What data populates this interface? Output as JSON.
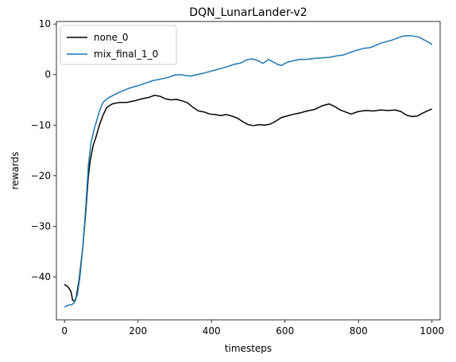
{
  "chart_data": {
    "type": "line",
    "title": "DQN_LunarLander-v2",
    "xlabel": "timesteps",
    "ylabel": "rewards",
    "xlim": [
      -22,
      1022
    ],
    "ylim": [
      -48.5,
      10.5
    ],
    "xticks": [
      0,
      200,
      400,
      600,
      800,
      1000
    ],
    "yticks": [
      10,
      0,
      -10,
      -20,
      -30,
      -40
    ],
    "xtick_labels": [
      "0",
      "200",
      "400",
      "600",
      "800",
      "1000"
    ],
    "ytick_labels": [
      "10",
      "0",
      "−10",
      "−20",
      "−30",
      "−40"
    ],
    "grid": false,
    "legend_position": "top-left",
    "series": [
      {
        "name": "none_0",
        "color": "#000000",
        "points": [
          [
            0,
            -41.5
          ],
          [
            10,
            -42.0
          ],
          [
            18,
            -43.0
          ],
          [
            22,
            -44.6
          ],
          [
            28,
            -44.8
          ],
          [
            32,
            -44.0
          ],
          [
            40,
            -40.5
          ],
          [
            50,
            -34.0
          ],
          [
            58,
            -27.0
          ],
          [
            65,
            -20.0
          ],
          [
            70,
            -17.0
          ],
          [
            78,
            -14.0
          ],
          [
            85,
            -12.5
          ],
          [
            95,
            -10.0
          ],
          [
            105,
            -8.0
          ],
          [
            115,
            -6.5
          ],
          [
            130,
            -5.8
          ],
          [
            150,
            -5.5
          ],
          [
            170,
            -5.5
          ],
          [
            190,
            -5.2
          ],
          [
            210,
            -4.8
          ],
          [
            230,
            -4.5
          ],
          [
            245,
            -4.1
          ],
          [
            260,
            -4.3
          ],
          [
            275,
            -4.8
          ],
          [
            290,
            -5.0
          ],
          [
            305,
            -4.9
          ],
          [
            320,
            -5.2
          ],
          [
            335,
            -5.6
          ],
          [
            350,
            -6.5
          ],
          [
            365,
            -7.2
          ],
          [
            380,
            -7.4
          ],
          [
            395,
            -7.8
          ],
          [
            410,
            -7.9
          ],
          [
            425,
            -8.1
          ],
          [
            440,
            -7.9
          ],
          [
            455,
            -8.2
          ],
          [
            470,
            -8.6
          ],
          [
            485,
            -9.3
          ],
          [
            500,
            -9.9
          ],
          [
            515,
            -10.1
          ],
          [
            530,
            -9.9
          ],
          [
            545,
            -10.0
          ],
          [
            560,
            -9.8
          ],
          [
            575,
            -9.2
          ],
          [
            590,
            -8.5
          ],
          [
            605,
            -8.2
          ],
          [
            620,
            -7.9
          ],
          [
            640,
            -7.6
          ],
          [
            660,
            -7.2
          ],
          [
            680,
            -6.9
          ],
          [
            700,
            -6.2
          ],
          [
            720,
            -5.8
          ],
          [
            735,
            -6.3
          ],
          [
            750,
            -7.0
          ],
          [
            765,
            -7.4
          ],
          [
            780,
            -7.8
          ],
          [
            800,
            -7.3
          ],
          [
            820,
            -7.1
          ],
          [
            840,
            -7.2
          ],
          [
            860,
            -7.0
          ],
          [
            880,
            -7.1
          ],
          [
            900,
            -7.0
          ],
          [
            915,
            -7.3
          ],
          [
            930,
            -8.0
          ],
          [
            945,
            -8.3
          ],
          [
            960,
            -8.2
          ],
          [
            975,
            -7.6
          ],
          [
            990,
            -7.1
          ],
          [
            1000,
            -6.8
          ]
        ]
      },
      {
        "name": "mix_final_1_0",
        "color": "#1f77b4",
        "points": [
          [
            0,
            -46.0
          ],
          [
            10,
            -45.6
          ],
          [
            20,
            -45.5
          ],
          [
            28,
            -45.0
          ],
          [
            35,
            -43.5
          ],
          [
            42,
            -40.0
          ],
          [
            50,
            -34.0
          ],
          [
            58,
            -26.0
          ],
          [
            65,
            -18.0
          ],
          [
            72,
            -13.5
          ],
          [
            80,
            -11.0
          ],
          [
            88,
            -9.0
          ],
          [
            96,
            -7.0
          ],
          [
            105,
            -5.5
          ],
          [
            115,
            -4.8
          ],
          [
            125,
            -4.4
          ],
          [
            135,
            -4.0
          ],
          [
            150,
            -3.5
          ],
          [
            165,
            -3.0
          ],
          [
            180,
            -2.6
          ],
          [
            200,
            -2.2
          ],
          [
            220,
            -1.7
          ],
          [
            240,
            -1.2
          ],
          [
            260,
            -0.9
          ],
          [
            280,
            -0.6
          ],
          [
            300,
            -0.1
          ],
          [
            315,
            0.0
          ],
          [
            330,
            -0.2
          ],
          [
            345,
            -0.3
          ],
          [
            360,
            0.0
          ],
          [
            380,
            0.3
          ],
          [
            400,
            0.7
          ],
          [
            420,
            1.1
          ],
          [
            440,
            1.5
          ],
          [
            460,
            2.0
          ],
          [
            480,
            2.3
          ],
          [
            495,
            2.9
          ],
          [
            510,
            3.1
          ],
          [
            525,
            2.8
          ],
          [
            540,
            2.2
          ],
          [
            555,
            3.0
          ],
          [
            570,
            2.4
          ],
          [
            580,
            2.0
          ],
          [
            590,
            1.8
          ],
          [
            605,
            2.4
          ],
          [
            620,
            2.7
          ],
          [
            640,
            3.0
          ],
          [
            660,
            3.0
          ],
          [
            680,
            3.2
          ],
          [
            700,
            3.3
          ],
          [
            720,
            3.4
          ],
          [
            740,
            3.7
          ],
          [
            760,
            3.9
          ],
          [
            775,
            4.3
          ],
          [
            790,
            4.7
          ],
          [
            800,
            4.9
          ],
          [
            815,
            5.2
          ],
          [
            830,
            5.3
          ],
          [
            845,
            5.7
          ],
          [
            860,
            6.2
          ],
          [
            875,
            6.5
          ],
          [
            890,
            6.8
          ],
          [
            905,
            7.2
          ],
          [
            920,
            7.6
          ],
          [
            935,
            7.7
          ],
          [
            950,
            7.6
          ],
          [
            965,
            7.4
          ],
          [
            980,
            6.8
          ],
          [
            995,
            6.2
          ],
          [
            1000,
            5.9
          ]
        ]
      }
    ]
  }
}
